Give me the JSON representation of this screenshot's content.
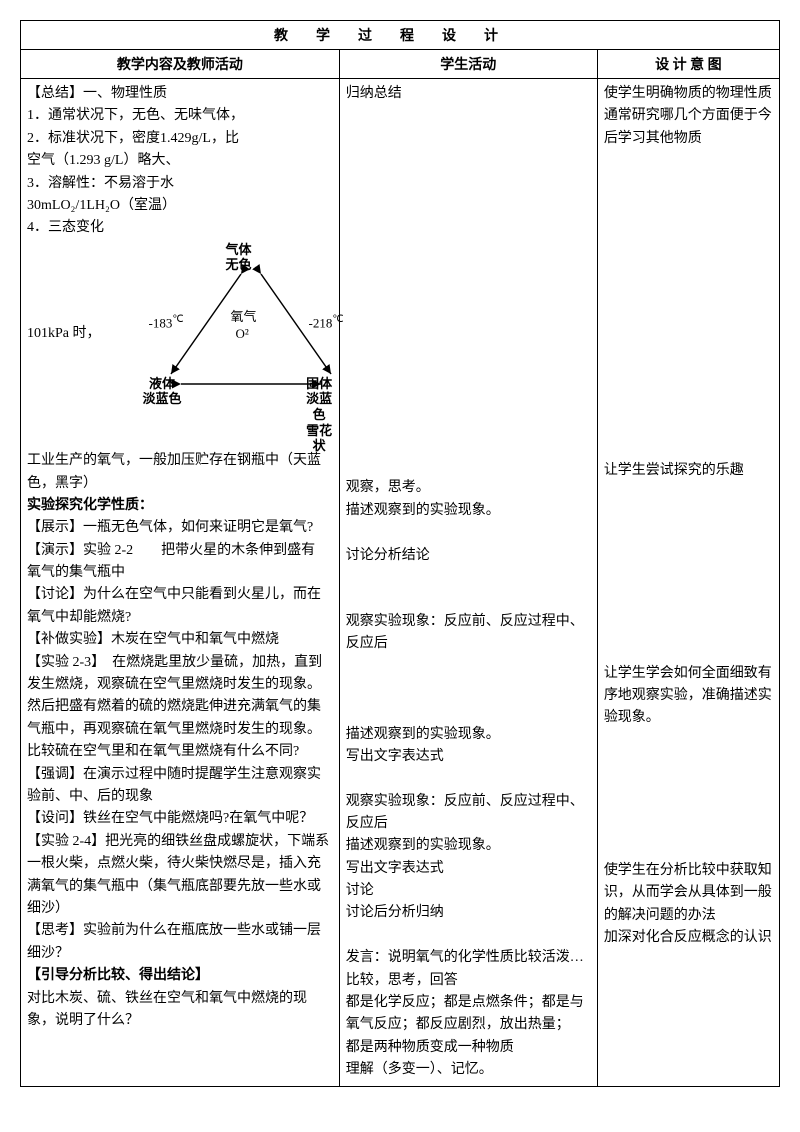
{
  "title": "教学过程设计",
  "headers": {
    "col1": "教学内容及教师活动",
    "col2": "学生活动",
    "col3": "设 计 意 图"
  },
  "diagram": {
    "top_label": "气体\n无色",
    "center_label_top": "氧气",
    "center_label_bottom": "O²",
    "left_temp": "-183",
    "left_unit": "℃",
    "left_bottom": "液体\n淡蓝色",
    "right_temp": "-218",
    "right_unit": "℃",
    "right_bottom": "固体\n淡蓝色\n雪花状",
    "line_color": "#000000"
  },
  "col1": {
    "summary_head": "【总结】一、物理性质",
    "p1": "1．通常状况下，无色、无味气体，",
    "p2a": "2．标准状况下，密度1.429g/L，比",
    "p2b": "空气（1.293 g/L）略大、",
    "p3": "3．溶解性：不易溶于水",
    "p3b": "30mLO₂/1LH₂O（室温）",
    "p4": "4．三态变化",
    "kpa": "101kPa 时，",
    "ind1": "工业生产的氧气，一般加压贮存在钢瓶中（天蓝色，黑字）",
    "exp_head": "实验探究化学性质：",
    "show": "【展示】一瓶无色气体，如何来证明它是氧气?",
    "demo22a": "【演示】实验 2-2　　把带火星的木条伸到盛有",
    "demo22b": "氧气的集气瓶中",
    "discuss1": "【讨论】为什么在空气中只能看到火星儿，而在氧气中却能燃烧?",
    "supp": "【补做实验】木炭在空气中和氧气中燃烧",
    "exp23": "【实验 2-3】　在燃烧匙里放少量硫，加热，直到发生燃烧，观察硫在空气里燃烧时发生的现象。然后把盛有燃着的硫的燃烧匙伸进充满氧气的集气瓶中，再观察硫在氧气里燃烧时发生的现象。比较硫在空气里和在氧气里燃烧有什么不同?",
    "emph": "【强调】在演示过程中随时提醒学生注意观察实验前、中、后的现象",
    "ask": "【设问】铁丝在空气中能燃烧吗?在氧气中呢？",
    "exp24": "【实验 2-4】把光亮的细铁丝盘成螺旋状，下端系一根火柴，点燃火柴，待火柴快燃尽是，插入充满氧气的集气瓶中（集气瓶底部要先放一些水或细沙）",
    "think": "【思考】实验前为什么在瓶底放一些水或铺一层细沙？",
    "guide": "【引导分析比较、得出结论】",
    "guide2": "对比木炭、硫、铁丝在空气和氧气中燃烧的现象，说明了什么？"
  },
  "col2": {
    "s1": "归纳总结",
    "s2": "观察，思考。",
    "s3": "描述观察到的实验现象。",
    "s4": "讨论分析结论",
    "s5": "观察实验现象：反应前、反应过程中、反应后",
    "s6": "描述观察到的实验现象。",
    "s7": "写出文字表达式",
    "s8": "观察实验现象：反应前、反应过程中、反应后",
    "s9": "描述观察到的实验现象。",
    "s10": "写出文字表达式",
    "s11": "讨论",
    "s12": "讨论后分析归纳",
    "s13a": "发言：说明氧气的化学性质比较活泼…",
    "s13b": "比较，思考，回答",
    "s13c": "都是化学反应；都是点燃条件；都是与氧气反应；都反应剧烈，放出热量；",
    "s13d": "都是两种物质变成一种物质",
    "s13e": "理解（多变一）、记忆。"
  },
  "col3": {
    "d1": "使学生明确物质的物理性质通常研究哪几个方面便于今后学习其他物质",
    "d2": "让学生尝试探究的乐趣",
    "d3": "让学生学会如何全面细致有序地观察实验，准确描述实验现象。",
    "d4": "使学生在分析比较中获取知识，从而学会从具体到一般的解决问题的办法",
    "d5": "加深对化合反应概念的认识"
  }
}
